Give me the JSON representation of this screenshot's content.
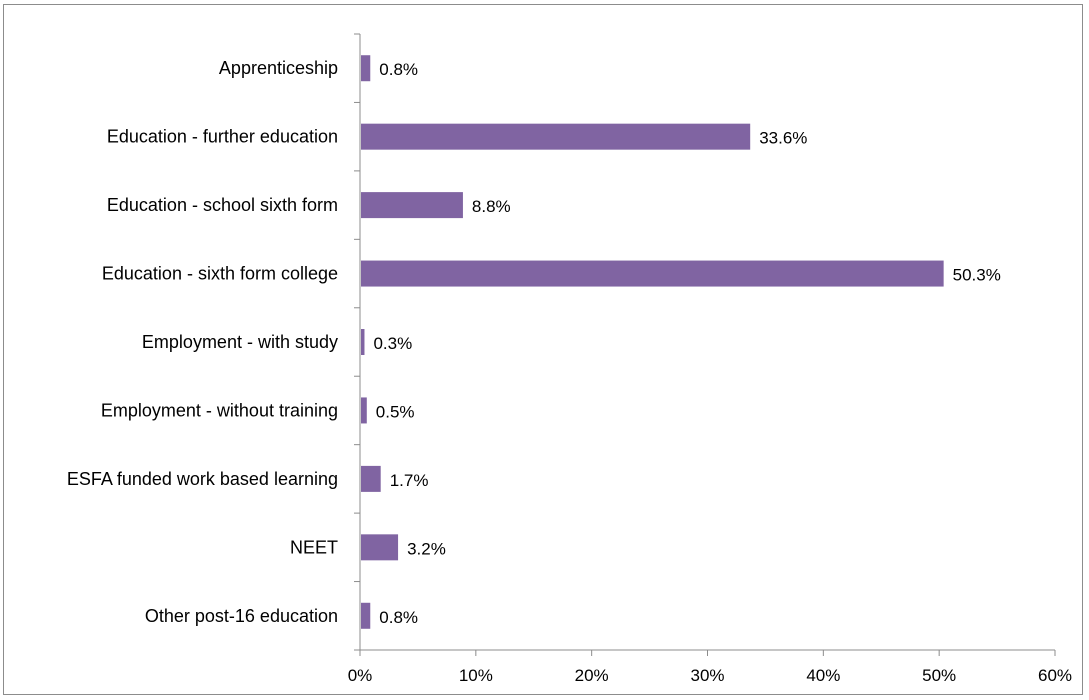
{
  "chart_data": {
    "type": "bar",
    "orientation": "horizontal",
    "title": "",
    "xlabel": "",
    "ylabel": "",
    "categories": [
      "Apprenticeship",
      "Education - further education",
      "Education - school sixth form",
      "Education - sixth form college",
      "Employment - with study",
      "Employment - without training",
      "ESFA funded work based learning",
      "NEET",
      "Other post-16 education"
    ],
    "values": [
      0.8,
      33.6,
      8.8,
      50.3,
      0.3,
      0.5,
      1.7,
      3.2,
      0.8
    ],
    "data_labels": [
      "0.8%",
      "33.6%",
      "8.8%",
      "50.3%",
      "0.3%",
      "0.5%",
      "1.7%",
      "3.2%",
      "0.8%"
    ],
    "xlim": [
      0,
      60
    ],
    "x_ticks": [
      0,
      10,
      20,
      30,
      40,
      50,
      60
    ],
    "x_tick_labels": [
      "0%",
      "10%",
      "20%",
      "30%",
      "40%",
      "50%",
      "60%"
    ],
    "grid": false,
    "legend": "none",
    "bar_color": "#8064a2"
  }
}
